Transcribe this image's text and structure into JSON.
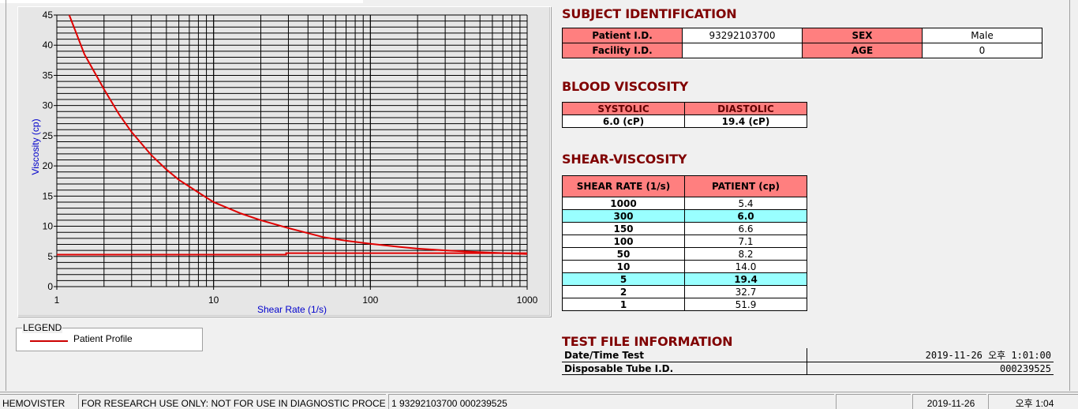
{
  "chart_data": {
    "type": "line",
    "xlabel": "Shear Rate (1/s)",
    "ylabel": "Viscosity (cp)",
    "xscale": "log",
    "xlim": [
      1,
      1000
    ],
    "ylim": [
      0,
      45
    ],
    "xticks": [
      "1",
      "10",
      "100",
      "1000"
    ],
    "yticks": [
      "0",
      "5",
      "10",
      "15",
      "20",
      "25",
      "30",
      "35",
      "40",
      "45"
    ],
    "grid": true,
    "series": [
      {
        "name": "Patient Profile",
        "color": "#e00000",
        "x": [
          1.2,
          1.5,
          2,
          2.5,
          3,
          4,
          5,
          6,
          8,
          10,
          15,
          20,
          30,
          50,
          70,
          100,
          150,
          200,
          300,
          500,
          700,
          1000
        ],
        "y": [
          45,
          38.5,
          32.7,
          28.5,
          25.6,
          21.8,
          19.4,
          17.7,
          15.6,
          14.0,
          12.1,
          11.0,
          9.7,
          8.2,
          7.6,
          7.1,
          6.6,
          6.3,
          6.0,
          5.7,
          5.55,
          5.4
        ]
      },
      {
        "color": "#e00000",
        "x": [
          1,
          29,
          29,
          1000
        ],
        "y": [
          5.3,
          5.3,
          5.55,
          5.55
        ]
      }
    ]
  },
  "legend": {
    "title": "LEGEND",
    "label": "Patient Profile"
  },
  "subject": {
    "title": "SUBJECT IDENTIFICATION",
    "patient_id_label": "Patient I.D.",
    "patient_id": "93292103700",
    "sex_label": "SEX",
    "sex": "Male",
    "facility_label": "Facility I.D.",
    "facility": "",
    "age_label": "AGE",
    "age": "0"
  },
  "blood": {
    "title": "BLOOD VISCOSITY",
    "systolic_label": "SYSTOLIC",
    "diastolic_label": "DIASTOLIC",
    "systolic": "6.0 (cP)",
    "diastolic": "19.4 (cP)"
  },
  "shear": {
    "title": "SHEAR-VISCOSITY",
    "col1": "SHEAR RATE (1/s)",
    "col2": "PATIENT (cp)",
    "rows": [
      [
        "1000",
        "5.4"
      ],
      [
        "300",
        "6.0"
      ],
      [
        "150",
        "6.6"
      ],
      [
        "100",
        "7.1"
      ],
      [
        "50",
        "8.2"
      ],
      [
        "10",
        "14.0"
      ],
      [
        "5",
        "19.4"
      ],
      [
        "2",
        "32.7"
      ],
      [
        "1",
        "51.9"
      ]
    ],
    "highlight_color": "#99ffff"
  },
  "testfile": {
    "title": "TEST FILE INFORMATION",
    "date_label": "Date/Time Test",
    "date": "2019-11-26  오후 1:01:00",
    "tube_label": "Disposable Tube I.D.",
    "tube": "000239525"
  },
  "status": {
    "app": "HEMOVISTER",
    "notice": "FOR RESEARCH USE ONLY: NOT FOR USE IN DIAGNOSTIC PROCEDURES",
    "record": "1  93292103700  000239525",
    "blank": "",
    "date": "2019-11-26",
    "time": "오후 1:04"
  }
}
